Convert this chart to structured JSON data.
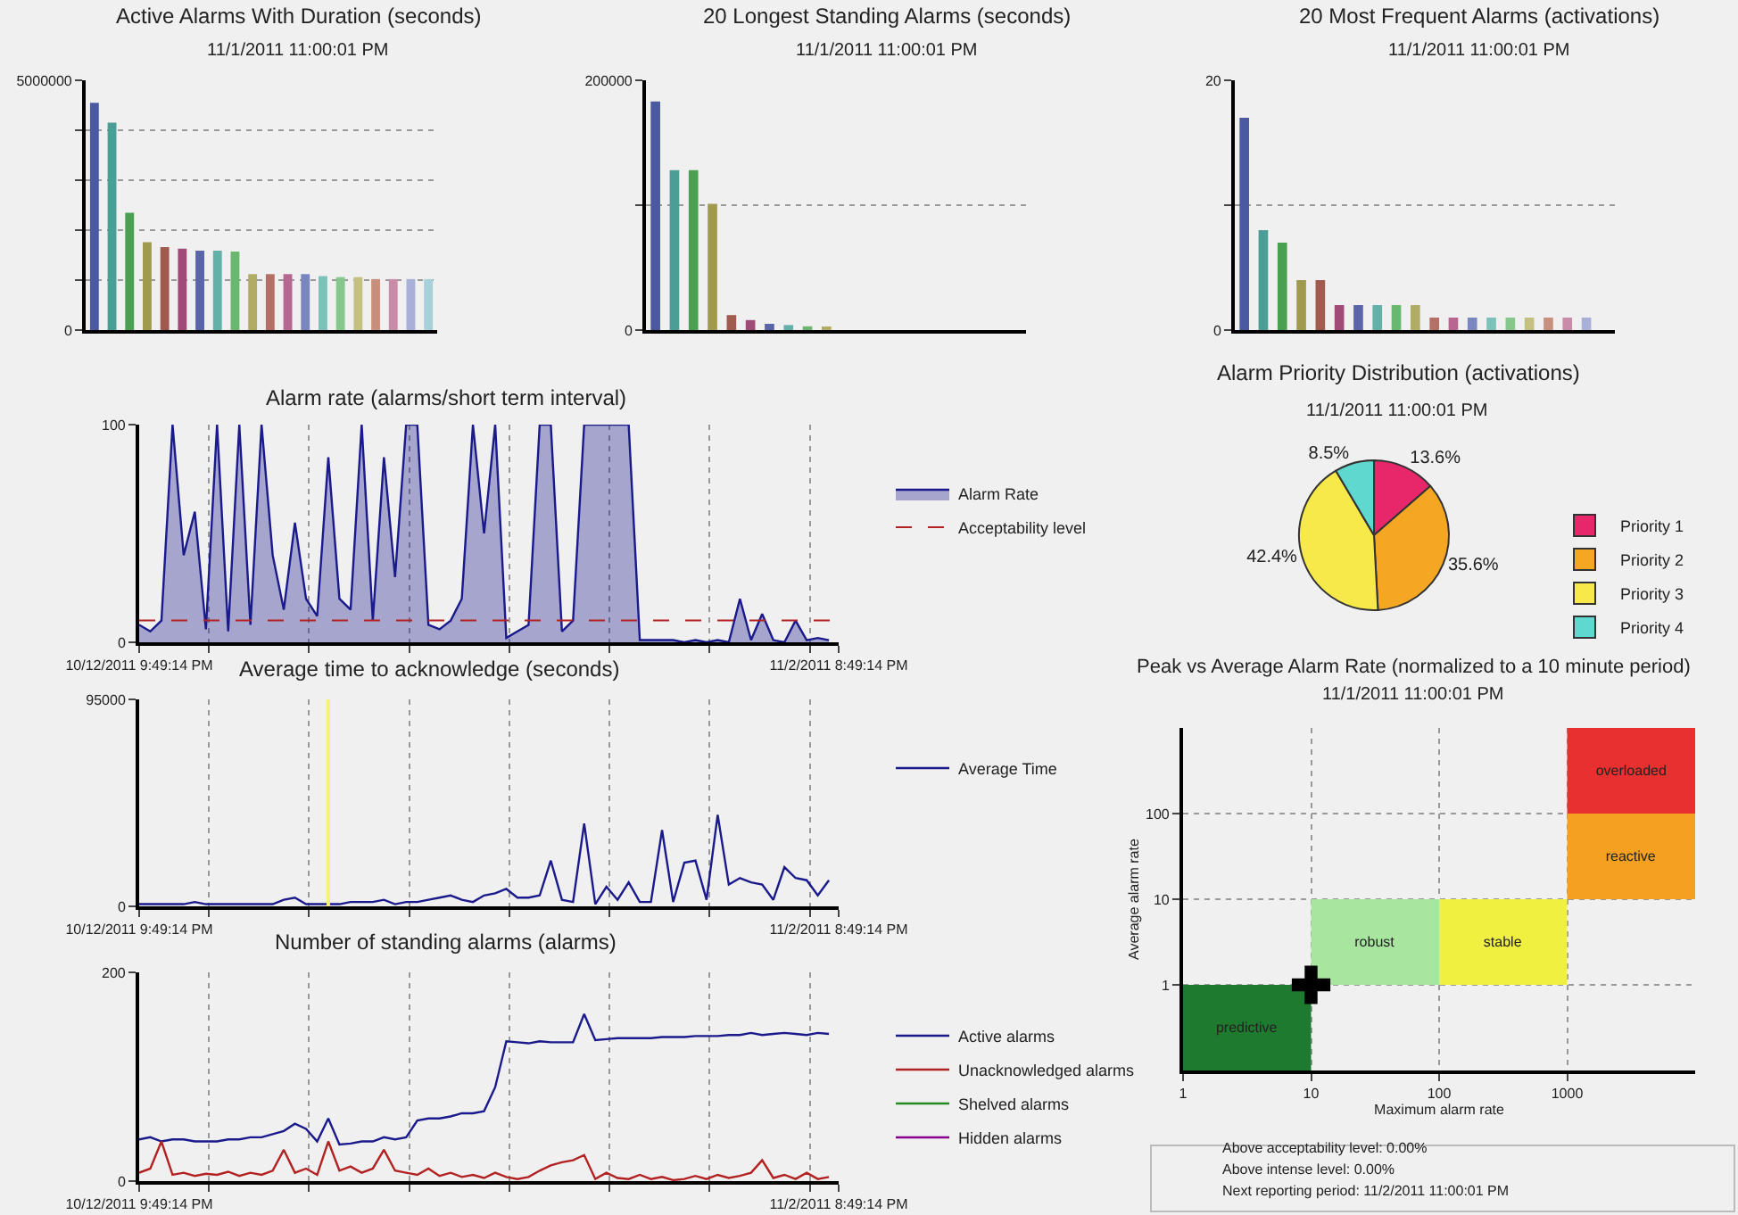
{
  "chart_data": [
    {
      "type": "bar",
      "title": "Active Alarms With Duration (seconds)",
      "subtitle": "11/1/2011 11:00:01 PM",
      "categories": [
        null,
        null,
        null,
        null,
        null,
        null,
        null,
        null,
        null,
        null,
        null,
        null,
        null,
        null,
        null,
        null,
        null,
        null,
        null,
        null
      ],
      "values": [
        4550000,
        4150000,
        2350000,
        1760000,
        1660000,
        1630000,
        1590000,
        1590000,
        1570000,
        1120000,
        1120000,
        1120000,
        1120000,
        1080000,
        1060000,
        1060000,
        1020000,
        1020000,
        1020000,
        1020000
      ],
      "colors": [
        "#4b5aa0",
        "#4a9e96",
        "#4aa050",
        "#9f9a4e",
        "#a05a4e",
        "#a04a78",
        "#5a64a8",
        "#62b0a8",
        "#6ab870",
        "#b0ac66",
        "#b47066",
        "#b66690",
        "#7a86c0",
        "#7cc2ba",
        "#86c88c",
        "#c4c080",
        "#c8907c",
        "#c88ca8",
        "#a8b0d8",
        "#a8d0d8"
      ],
      "ylim": [
        0,
        5000000
      ],
      "yticks": [
        0,
        {
          "value": 1000000,
          "label": null
        },
        {
          "value": 2000000,
          "label": null
        },
        {
          "value": 3000000,
          "label": null
        },
        {
          "value": 4000000,
          "label": null
        },
        5000000
      ],
      "grid": "y",
      "tick_labels": "y"
    },
    {
      "type": "bar",
      "title": "20 Longest Standing Alarms (seconds)",
      "subtitle": "11/1/2011 11:00:01 PM",
      "categories": [
        null,
        null,
        null,
        null,
        null,
        null,
        null,
        null,
        null,
        null,
        null,
        null,
        null,
        null,
        null,
        null,
        null,
        null,
        null,
        null
      ],
      "values": [
        183000,
        128000,
        128000,
        101000,
        12000,
        8000,
        5000,
        4000,
        3000,
        2000,
        null,
        null,
        null,
        null,
        null,
        null,
        null,
        null,
        null,
        null
      ],
      "colors": [
        "#4b5aa0",
        "#4a9e96",
        "#4aa050",
        "#9f9a4e",
        "#a05a4e",
        "#a04a78",
        "#5a64a8",
        "#62b0a8",
        "#6ab870",
        "#b0ac66",
        "#b47066",
        "#b66690",
        "#7a86c0",
        "#7cc2ba",
        "#86c88c",
        "#c4c080",
        "#c8907c",
        "#c88ca8",
        "#a8b0d8",
        "#a8d0d8"
      ],
      "ylim": [
        0,
        200000
      ],
      "yticks": [
        0,
        {
          "value": 100000,
          "label": null
        },
        200000
      ],
      "grid": "y",
      "tick_labels": "y"
    },
    {
      "type": "bar",
      "title": "20 Most Frequent Alarms (activations)",
      "subtitle": "11/1/2011 11:00:01 PM",
      "categories": [
        null,
        null,
        null,
        null,
        null,
        null,
        null,
        null,
        null,
        null,
        null,
        null,
        null,
        null,
        null,
        null,
        null,
        null,
        null,
        null
      ],
      "values": [
        17,
        8,
        7,
        4,
        4,
        2,
        2,
        2,
        2,
        2,
        1,
        1,
        1,
        1,
        1,
        1,
        1,
        1,
        1,
        null
      ],
      "colors": [
        "#4b5aa0",
        "#4a9e96",
        "#4aa050",
        "#9f9a4e",
        "#a05a4e",
        "#a04a78",
        "#5a64a8",
        "#62b0a8",
        "#6ab870",
        "#b0ac66",
        "#b47066",
        "#b66690",
        "#7a86c0",
        "#7cc2ba",
        "#86c88c",
        "#c4c080",
        "#c8907c",
        "#c88ca8",
        "#a8b0d8",
        "#a8d0d8"
      ],
      "ylim": [
        0,
        20
      ],
      "yticks": [
        0,
        {
          "value": 10,
          "label": null
        },
        20
      ],
      "grid": "y",
      "tick_labels": "y"
    },
    {
      "type": "area",
      "title": "Alarm rate (alarms/short term interval)",
      "legend": "right",
      "marker": "none",
      "grid": true,
      "x": [
        "2011-10-12T21:49",
        "2011-10-13T05:49",
        "2011-10-13T13:49",
        "2011-10-13T21:49",
        "2011-10-14T05:49",
        "2011-10-14T13:49",
        "2011-10-14T21:49",
        "2011-10-15T05:49",
        "2011-10-15T13:49",
        "2011-10-15T21:49",
        "2011-10-16T05:49",
        "2011-10-16T13:49",
        "2011-10-16T21:49",
        "2011-10-17T05:49",
        "2011-10-17T13:49",
        "2011-10-17T21:49",
        "2011-10-18T05:49",
        "2011-10-18T13:49",
        "2011-10-18T21:49",
        "2011-10-19T05:49",
        "2011-10-19T13:49",
        "2011-10-19T21:49",
        "2011-10-20T05:49",
        "2011-10-20T13:49",
        "2011-10-20T21:49",
        "2011-10-21T05:49",
        "2011-10-21T13:49",
        "2011-10-21T21:49",
        "2011-10-22T05:49",
        "2011-10-22T13:49",
        "2011-10-22T21:49",
        "2011-10-23T05:49",
        "2011-10-23T13:49",
        "2011-10-23T21:49",
        "2011-10-24T05:49",
        "2011-10-24T13:49",
        "2011-10-24T21:49",
        "2011-10-25T05:49",
        "2011-10-25T13:49",
        "2011-10-25T21:49",
        "2011-10-26T05:49",
        "2011-10-26T13:49",
        "2011-10-26T21:49",
        "2011-10-27T05:49",
        "2011-10-27T13:49",
        "2011-10-27T21:49",
        "2011-10-28T05:49",
        "2011-10-28T13:49",
        "2011-10-28T21:49",
        "2011-10-29T05:49",
        "2011-10-29T13:49",
        "2011-10-29T21:49",
        "2011-10-30T05:49",
        "2011-10-30T13:49",
        "2011-10-30T21:49",
        "2011-10-31T05:49",
        "2011-10-31T13:49",
        "2011-10-31T21:49",
        "2011-11-01T05:49",
        "2011-11-01T13:49",
        "2011-11-01T21:49",
        "2011-11-02T05:49",
        "2011-11-02T13:49"
      ],
      "series": [
        {
          "name": "Alarm Rate",
          "color": "#1a1a8c",
          "values": [
            8,
            5,
            10,
            100,
            40,
            60,
            6,
            100,
            5,
            100,
            8,
            100,
            40,
            15,
            55,
            20,
            12,
            85,
            20,
            15,
            100,
            10,
            85,
            30,
            100,
            100,
            8,
            6,
            10,
            20,
            100,
            50,
            100,
            2,
            5,
            8,
            100,
            100,
            5,
            10,
            100,
            100,
            100,
            100,
            100,
            1,
            1,
            1,
            1,
            0,
            1,
            0,
            1,
            0,
            20,
            1,
            13,
            1,
            0,
            10,
            1,
            2,
            1
          ]
        }
      ],
      "ref_lines": [
        {
          "axis": "y",
          "value": 10,
          "label": "Acceptability level",
          "color": "#b22222",
          "line_style": "dashed"
        }
      ],
      "xlim": [
        "2011-10-12T21:49",
        "2011-11-02T20:49"
      ],
      "xticks": [
        {
          "value": "2011-10-12T21:49",
          "label": "10/12/2011 9:49:14 PM"
        },
        {
          "value": "2011-10-15",
          "label": null
        },
        {
          "value": "2011-10-18",
          "label": null
        },
        {
          "value": "2011-10-21",
          "label": null
        },
        {
          "value": "2011-10-24",
          "label": null
        },
        {
          "value": "2011-10-27",
          "label": null
        },
        {
          "value": "2011-10-30",
          "label": null
        },
        {
          "value": "2011-11-02",
          "label": null
        },
        {
          "value": "2011-11-02T20:49",
          "label": "11/2/2011 8:49:14 PM"
        }
      ],
      "ylim": [
        0,
        100
      ],
      "yticks": [
        0,
        100
      ]
    },
    {
      "type": "line",
      "title": "Average time to acknowledge (seconds)",
      "legend": "right",
      "marker": "none",
      "grid": true,
      "x": [
        "2011-10-12T21:49",
        "2011-10-13T05:49",
        "2011-10-13T13:49",
        "2011-10-13T21:49",
        "2011-10-14T05:49",
        "2011-10-14T13:49",
        "2011-10-14T21:49",
        "2011-10-15T05:49",
        "2011-10-15T13:49",
        "2011-10-15T21:49",
        "2011-10-16T05:49",
        "2011-10-16T13:49",
        "2011-10-16T21:49",
        "2011-10-17T05:49",
        "2011-10-17T13:49",
        "2011-10-17T21:49",
        "2011-10-18T05:49",
        "2011-10-18T13:49",
        "2011-10-18T21:49",
        "2011-10-19T05:49",
        "2011-10-19T13:49",
        "2011-10-19T21:49",
        "2011-10-20T05:49",
        "2011-10-20T13:49",
        "2011-10-20T21:49",
        "2011-10-21T05:49",
        "2011-10-21T13:49",
        "2011-10-21T21:49",
        "2011-10-22T05:49",
        "2011-10-22T13:49",
        "2011-10-22T21:49",
        "2011-10-23T05:49",
        "2011-10-23T13:49",
        "2011-10-23T21:49",
        "2011-10-24T05:49",
        "2011-10-24T13:49",
        "2011-10-24T21:49",
        "2011-10-25T05:49",
        "2011-10-25T13:49",
        "2011-10-25T21:49",
        "2011-10-26T05:49",
        "2011-10-26T13:49",
        "2011-10-26T21:49",
        "2011-10-27T05:49",
        "2011-10-27T13:49",
        "2011-10-27T21:49",
        "2011-10-28T05:49",
        "2011-10-28T13:49",
        "2011-10-28T21:49",
        "2011-10-29T05:49",
        "2011-10-29T13:49",
        "2011-10-29T21:49",
        "2011-10-30T05:49",
        "2011-10-30T13:49",
        "2011-10-30T21:49",
        "2011-10-31T05:49",
        "2011-10-31T13:49",
        "2011-10-31T21:49",
        "2011-11-01T05:49",
        "2011-11-01T13:49",
        "2011-11-01T21:49",
        "2011-11-02T05:49",
        "2011-11-02T13:49"
      ],
      "series": [
        {
          "name": "Average Time",
          "color": "#1a1a8c",
          "values": [
            1000,
            1000,
            1000,
            1000,
            1000,
            2000,
            1000,
            1000,
            1000,
            1000,
            1000,
            1000,
            1000,
            3000,
            4000,
            1000,
            1000,
            1000,
            1000,
            2000,
            2000,
            2000,
            3000,
            1000,
            2000,
            2000,
            3000,
            4000,
            5000,
            3000,
            2000,
            5000,
            6000,
            8000,
            4000,
            4000,
            5000,
            21000,
            3000,
            2000,
            38000,
            1000,
            9000,
            3000,
            11000,
            2000,
            2000,
            35000,
            2000,
            20000,
            21000,
            3000,
            42000,
            10000,
            13000,
            11000,
            10000,
            3000,
            18000,
            13000,
            12000,
            5000,
            12000
          ]
        }
      ],
      "ref_lines": [
        {
          "axis": "x",
          "value": "2011-10-18T13:49",
          "label": null,
          "color": "#f5f07a"
        }
      ],
      "xlim": [
        "2011-10-12T21:49",
        "2011-11-02T20:49"
      ],
      "xticks": [
        {
          "value": "2011-10-12T21:49",
          "label": "10/12/2011 9:49:14 PM"
        },
        {
          "value": "2011-10-15",
          "label": null
        },
        {
          "value": "2011-10-18",
          "label": null
        },
        {
          "value": "2011-10-21",
          "label": null
        },
        {
          "value": "2011-10-24",
          "label": null
        },
        {
          "value": "2011-10-27",
          "label": null
        },
        {
          "value": "2011-10-30",
          "label": null
        },
        {
          "value": "2011-11-02",
          "label": null
        },
        {
          "value": "2011-11-02T20:49",
          "label": "11/2/2011 8:49:14 PM"
        }
      ],
      "ylim": [
        0,
        95000
      ],
      "yticks": [
        0,
        95000
      ]
    },
    {
      "type": "line",
      "title": "Number of standing alarms (alarms)",
      "legend": "right",
      "marker": "none",
      "grid": true,
      "x": [
        "2011-10-12T21:49",
        "2011-10-13T05:49",
        "2011-10-13T13:49",
        "2011-10-13T21:49",
        "2011-10-14T05:49",
        "2011-10-14T13:49",
        "2011-10-14T21:49",
        "2011-10-15T05:49",
        "2011-10-15T13:49",
        "2011-10-15T21:49",
        "2011-10-16T05:49",
        "2011-10-16T13:49",
        "2011-10-16T21:49",
        "2011-10-17T05:49",
        "2011-10-17T13:49",
        "2011-10-17T21:49",
        "2011-10-18T05:49",
        "2011-10-18T13:49",
        "2011-10-18T21:49",
        "2011-10-19T05:49",
        "2011-10-19T13:49",
        "2011-10-19T21:49",
        "2011-10-20T05:49",
        "2011-10-20T13:49",
        "2011-10-20T21:49",
        "2011-10-21T05:49",
        "2011-10-21T13:49",
        "2011-10-21T21:49",
        "2011-10-22T05:49",
        "2011-10-22T13:49",
        "2011-10-22T21:49",
        "2011-10-23T05:49",
        "2011-10-23T13:49",
        "2011-10-23T21:49",
        "2011-10-24T05:49",
        "2011-10-24T13:49",
        "2011-10-24T21:49",
        "2011-10-25T05:49",
        "2011-10-25T13:49",
        "2011-10-25T21:49",
        "2011-10-26T05:49",
        "2011-10-26T13:49",
        "2011-10-26T21:49",
        "2011-10-27T05:49",
        "2011-10-27T13:49",
        "2011-10-27T21:49",
        "2011-10-28T05:49",
        "2011-10-28T13:49",
        "2011-10-28T21:49",
        "2011-10-29T05:49",
        "2011-10-29T13:49",
        "2011-10-29T21:49",
        "2011-10-30T05:49",
        "2011-10-30T13:49",
        "2011-10-30T21:49",
        "2011-10-31T05:49",
        "2011-10-31T13:49",
        "2011-10-31T21:49",
        "2011-11-01T05:49",
        "2011-11-01T13:49",
        "2011-11-01T21:49",
        "2011-11-02T05:49",
        "2011-11-02T13:49"
      ],
      "series": [
        {
          "name": "Active alarms",
          "color": "#1a1a8c",
          "values": [
            40,
            42,
            38,
            40,
            40,
            38,
            38,
            38,
            40,
            40,
            42,
            42,
            45,
            48,
            55,
            50,
            38,
            60,
            35,
            36,
            38,
            38,
            42,
            40,
            42,
            58,
            60,
            60,
            62,
            65,
            65,
            67,
            90,
            134,
            133,
            132,
            134,
            133,
            133,
            133,
            160,
            135,
            136,
            137,
            137,
            137,
            137,
            138,
            138,
            138,
            139,
            139,
            139,
            140,
            140,
            142,
            140,
            141,
            142,
            141,
            140,
            142,
            141
          ]
        },
        {
          "name": "Unacknowledged alarms",
          "color": "#b22222",
          "values": [
            8,
            12,
            38,
            6,
            8,
            5,
            7,
            6,
            9,
            5,
            8,
            6,
            10,
            30,
            8,
            12,
            6,
            38,
            10,
            14,
            8,
            12,
            30,
            10,
            8,
            6,
            12,
            5,
            8,
            4,
            6,
            3,
            8,
            4,
            2,
            4,
            10,
            15,
            18,
            20,
            25,
            2,
            8,
            3,
            2,
            6,
            2,
            4,
            1,
            2,
            5,
            2,
            6,
            3,
            5,
            8,
            20,
            3,
            6,
            2,
            8,
            2,
            4
          ]
        },
        {
          "name": "Shelved alarms",
          "color": "#228b22",
          "values": [
            null,
            null,
            null,
            null,
            null,
            null,
            null,
            null,
            null,
            null,
            null,
            null,
            null,
            null,
            null,
            null,
            null,
            null,
            null,
            null,
            null,
            null,
            null,
            null,
            null,
            null,
            null,
            null,
            null,
            null,
            null,
            null,
            null,
            null,
            null,
            null,
            null,
            null,
            null,
            null,
            null,
            null,
            null,
            null,
            null,
            null,
            null,
            null,
            null,
            null,
            null,
            null,
            null,
            null,
            null,
            null,
            null,
            null,
            null,
            null,
            null,
            null,
            null
          ]
        },
        {
          "name": "Hidden alarms",
          "color": "#8b008b",
          "values": [
            null,
            null,
            null,
            null,
            null,
            null,
            null,
            null,
            null,
            null,
            null,
            null,
            null,
            null,
            null,
            null,
            null,
            null,
            null,
            null,
            null,
            null,
            null,
            null,
            null,
            null,
            null,
            null,
            null,
            null,
            null,
            null,
            null,
            null,
            null,
            null,
            null,
            null,
            null,
            null,
            null,
            null,
            null,
            null,
            null,
            null,
            null,
            null,
            null,
            null,
            null,
            null,
            null,
            null,
            null,
            null,
            null,
            null,
            null,
            null,
            null,
            null,
            null
          ]
        }
      ],
      "xlim": [
        "2011-10-12T21:49",
        "2011-11-02T20:49"
      ],
      "xticks": [
        {
          "value": "2011-10-12T21:49",
          "label": "10/12/2011 9:49:14 PM"
        },
        {
          "value": "2011-10-15",
          "label": null
        },
        {
          "value": "2011-10-18",
          "label": null
        },
        {
          "value": "2011-10-21",
          "label": null
        },
        {
          "value": "2011-10-24",
          "label": null
        },
        {
          "value": "2011-10-27",
          "label": null
        },
        {
          "value": "2011-10-30",
          "label": null
        },
        {
          "value": "2011-11-02",
          "label": null
        },
        {
          "value": "2011-11-02T20:49",
          "label": "11/2/2011 8:49:14 PM"
        }
      ],
      "ylim": [
        0,
        200
      ],
      "yticks": [
        0,
        200
      ]
    },
    {
      "type": "pie",
      "title": "Alarm Priority Distribution (activations)",
      "subtitle": "11/1/2011 11:00:01 PM",
      "legend": "right",
      "categories": [
        "Priority 1",
        "Priority 2",
        "Priority 3",
        "Priority 4"
      ],
      "values": [
        13.6,
        35.6,
        42.4,
        8.5
      ],
      "value_labels": [
        "13.6%",
        "35.6%",
        "42.4%",
        "8.5%"
      ],
      "colors": [
        "#e8266a",
        "#f5a623",
        "#f7e94a",
        "#5fd8d0"
      ]
    },
    {
      "type": "scatter",
      "title": "Peak vs Average Alarm Rate (normalized to a 10 minute period)",
      "subtitle": "11/1/2011 11:00:01 PM",
      "xlabel": "Maximum alarm rate",
      "ylabel": "Average alarm rate",
      "x": [
        10
      ],
      "series": [
        {
          "type": "bar",
          "x": [
            3.2,
            32,
            320,
            3200
          ],
          "base": [
            0.1,
            1,
            1,
            10
          ],
          "values": [
            0.9,
            9,
            9,
            90
          ],
          "colors": [
            "#1e7a2e",
            "#a8e6a0",
            "#f0f040",
            "#f5a020"
          ],
          "value_labels": [
            "predictive",
            "robust",
            "stable",
            "reactive"
          ]
        },
        {
          "type": "bar",
          "x": [
            3200
          ],
          "base": [
            100
          ],
          "values": [
            900
          ],
          "colors": [
            "#e83030"
          ],
          "value_labels": [
            "overloaded"
          ]
        },
        {
          "color": "#000000",
          "values": [
            1
          ]
        }
      ],
      "marker": "cross",
      "log": "xy",
      "grid": true,
      "xlim": [
        1,
        10000
      ],
      "xticks": [
        1,
        10,
        100,
        1000
      ],
      "ylim": [
        0.1,
        1000
      ],
      "yticks": [
        1,
        10,
        100
      ],
      "annotations": [
        "Above acceptability level: 0.00%",
        "Above intense level: 0.00%",
        "Next reporting period: 11/2/2011 11:00:01 PM"
      ]
    }
  ]
}
